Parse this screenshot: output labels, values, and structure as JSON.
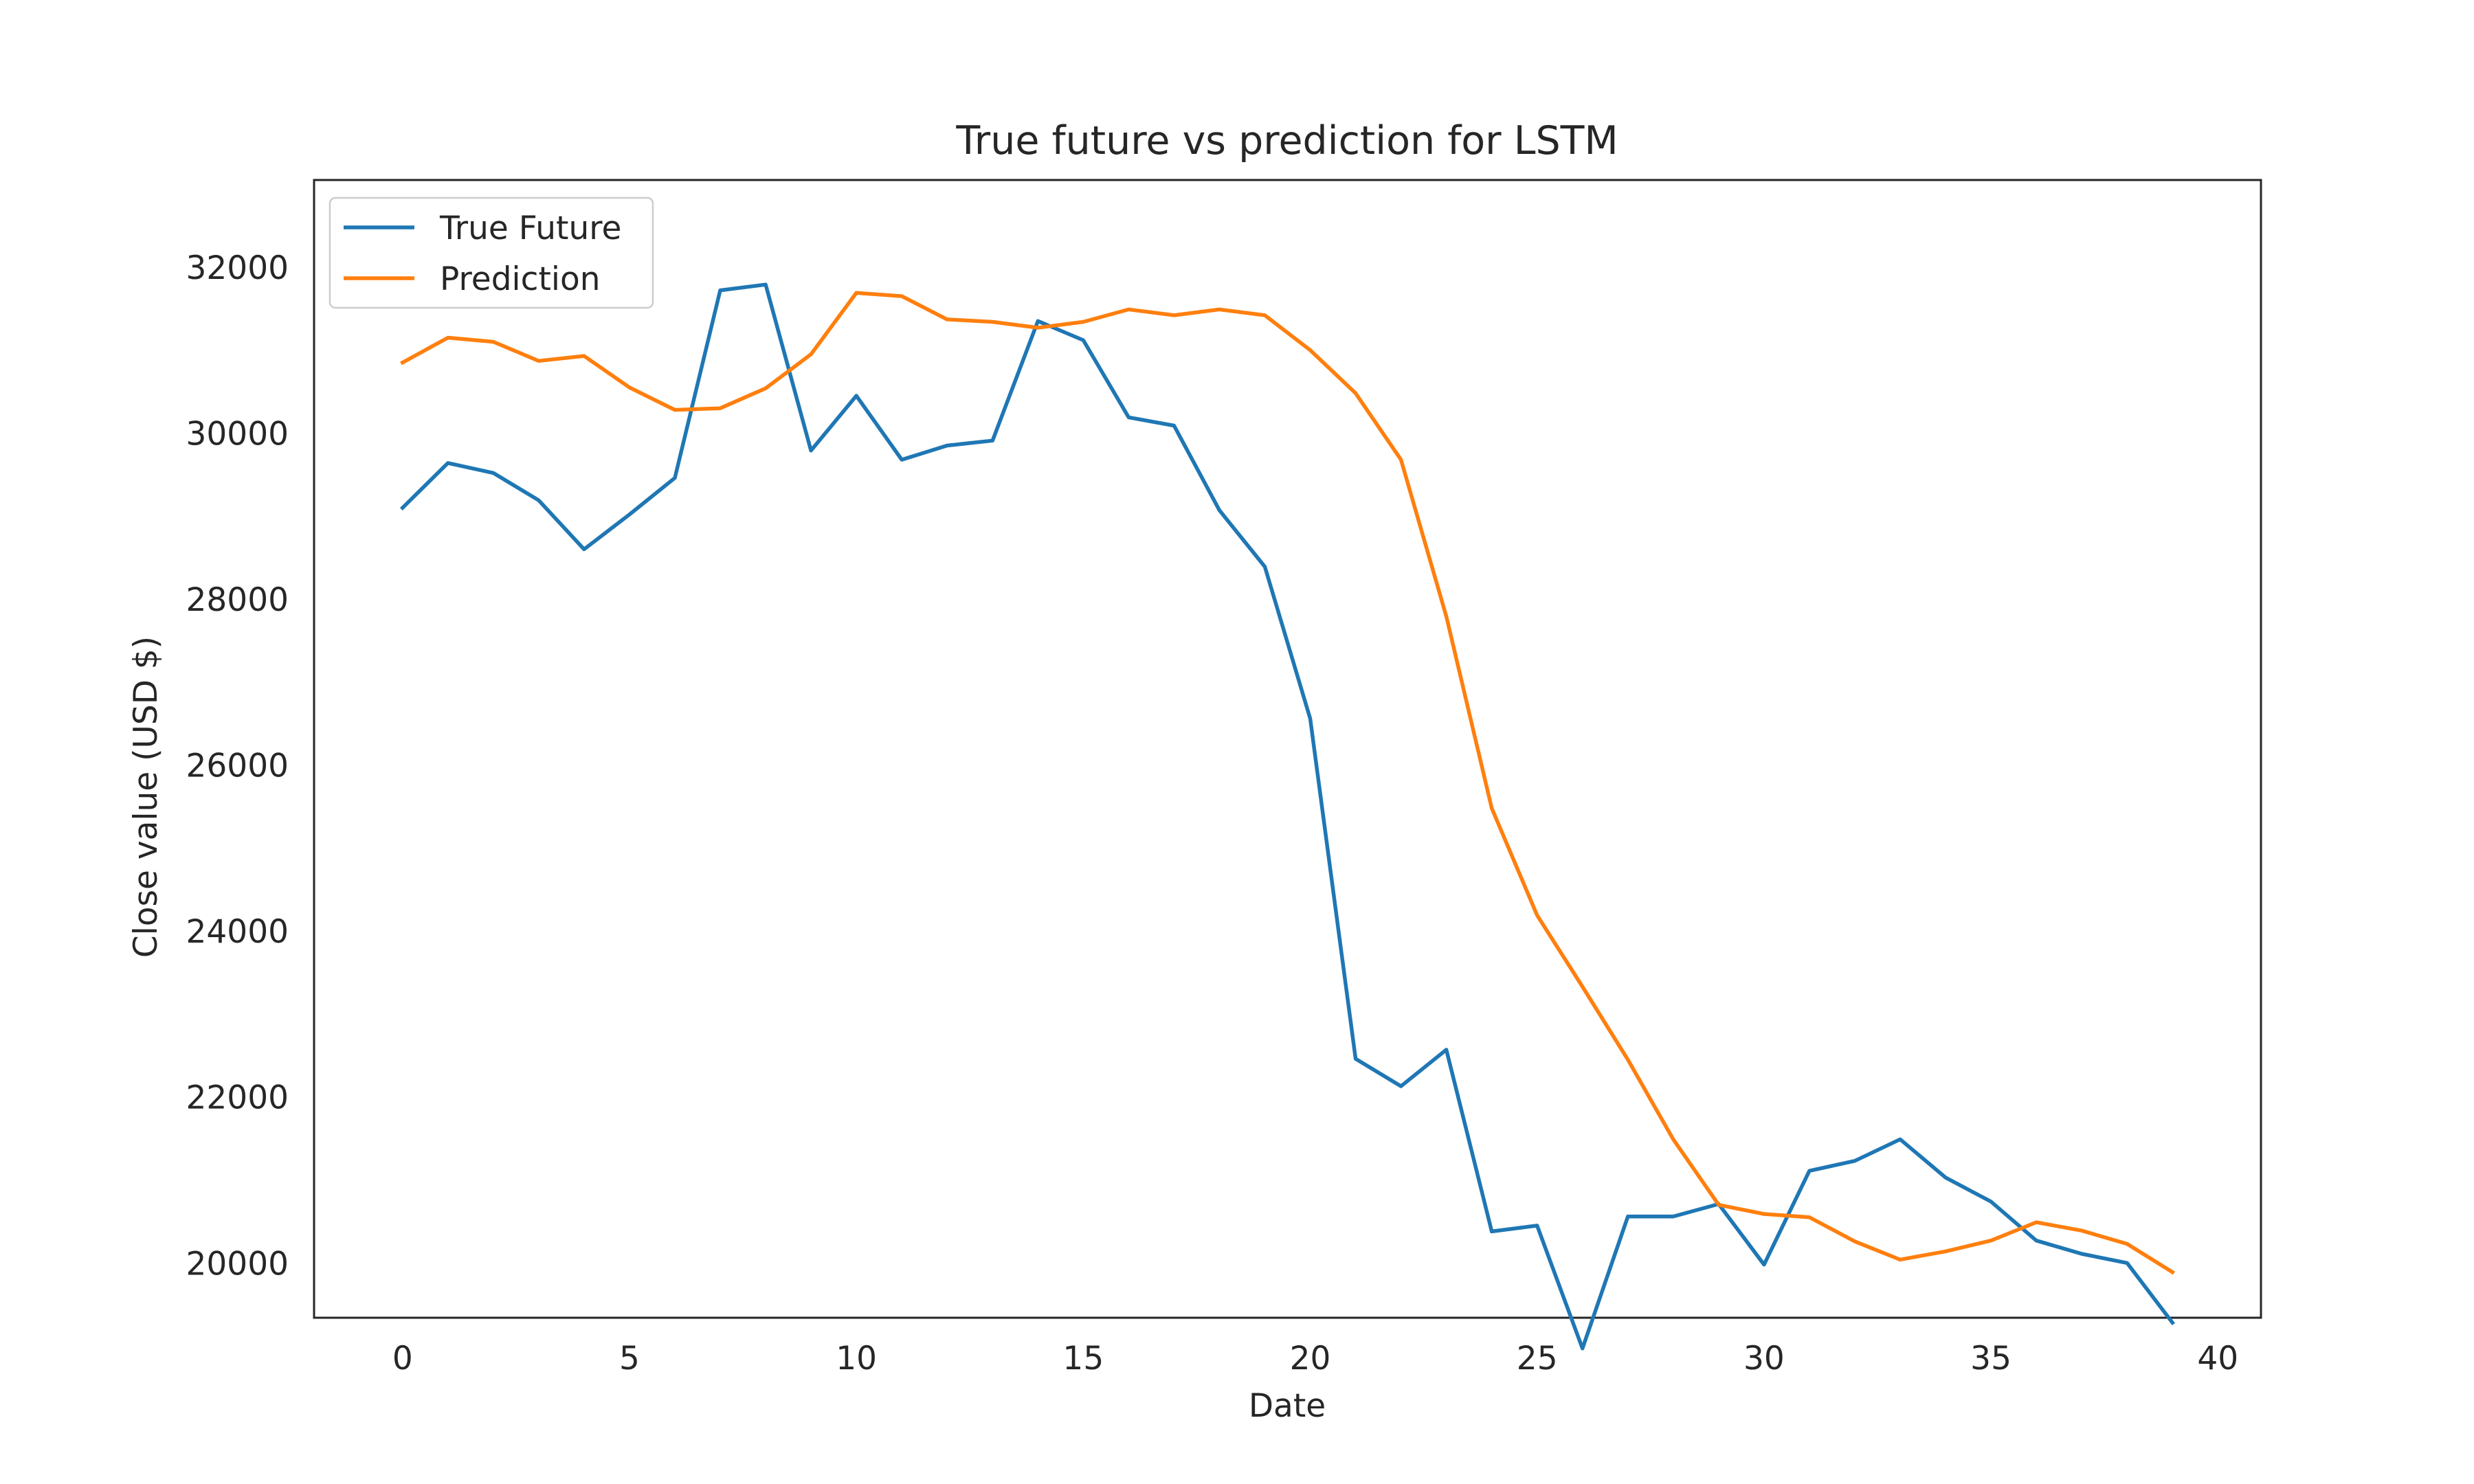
{
  "chart_data": {
    "type": "line",
    "title": "True future vs prediction for LSTM",
    "xlabel": "Date",
    "ylabel": "Close value (USD $)",
    "xlim": [
      -1.95,
      40.95
    ],
    "ylim": [
      19340,
      33050
    ],
    "xticks": [
      0,
      5,
      10,
      15,
      20,
      25,
      30,
      35,
      40
    ],
    "yticks": [
      20000,
      22000,
      24000,
      26000,
      28000,
      30000,
      32000
    ],
    "grid": false,
    "legend_position": "upper left",
    "x": [
      0,
      1,
      2,
      3,
      4,
      5,
      6,
      7,
      8,
      9,
      10,
      11,
      12,
      13,
      14,
      15,
      16,
      17,
      18,
      19,
      20,
      21,
      22,
      23,
      24,
      25,
      26,
      27,
      28,
      29,
      30,
      31,
      32,
      33,
      34,
      35,
      36,
      37,
      38,
      39
    ],
    "series": [
      {
        "name": "True Future",
        "color": "#1f77b4",
        "values": [
          29100,
          29640,
          29520,
          29190,
          28600,
          29020,
          29460,
          31720,
          31790,
          29790,
          30450,
          29680,
          29850,
          29910,
          31350,
          31120,
          30190,
          30090,
          29070,
          28390,
          26560,
          22460,
          22130,
          22570,
          20380,
          20450,
          18970,
          20560,
          20560,
          20710,
          19980,
          21110,
          21230,
          21490,
          21030,
          20740,
          20270,
          20110,
          20000,
          19280
        ]
      },
      {
        "name": "Prediction",
        "color": "#ff7f0e",
        "values": [
          30850,
          31150,
          31100,
          30870,
          30930,
          30550,
          30280,
          30300,
          30540,
          30950,
          31690,
          31650,
          31370,
          31340,
          31270,
          31340,
          31490,
          31420,
          31490,
          31420,
          31000,
          30480,
          29680,
          27790,
          25480,
          24190,
          23330,
          22450,
          21490,
          20700,
          20590,
          20550,
          20260,
          20040,
          20140,
          20270,
          20490,
          20390,
          20230,
          19890
        ]
      }
    ]
  }
}
